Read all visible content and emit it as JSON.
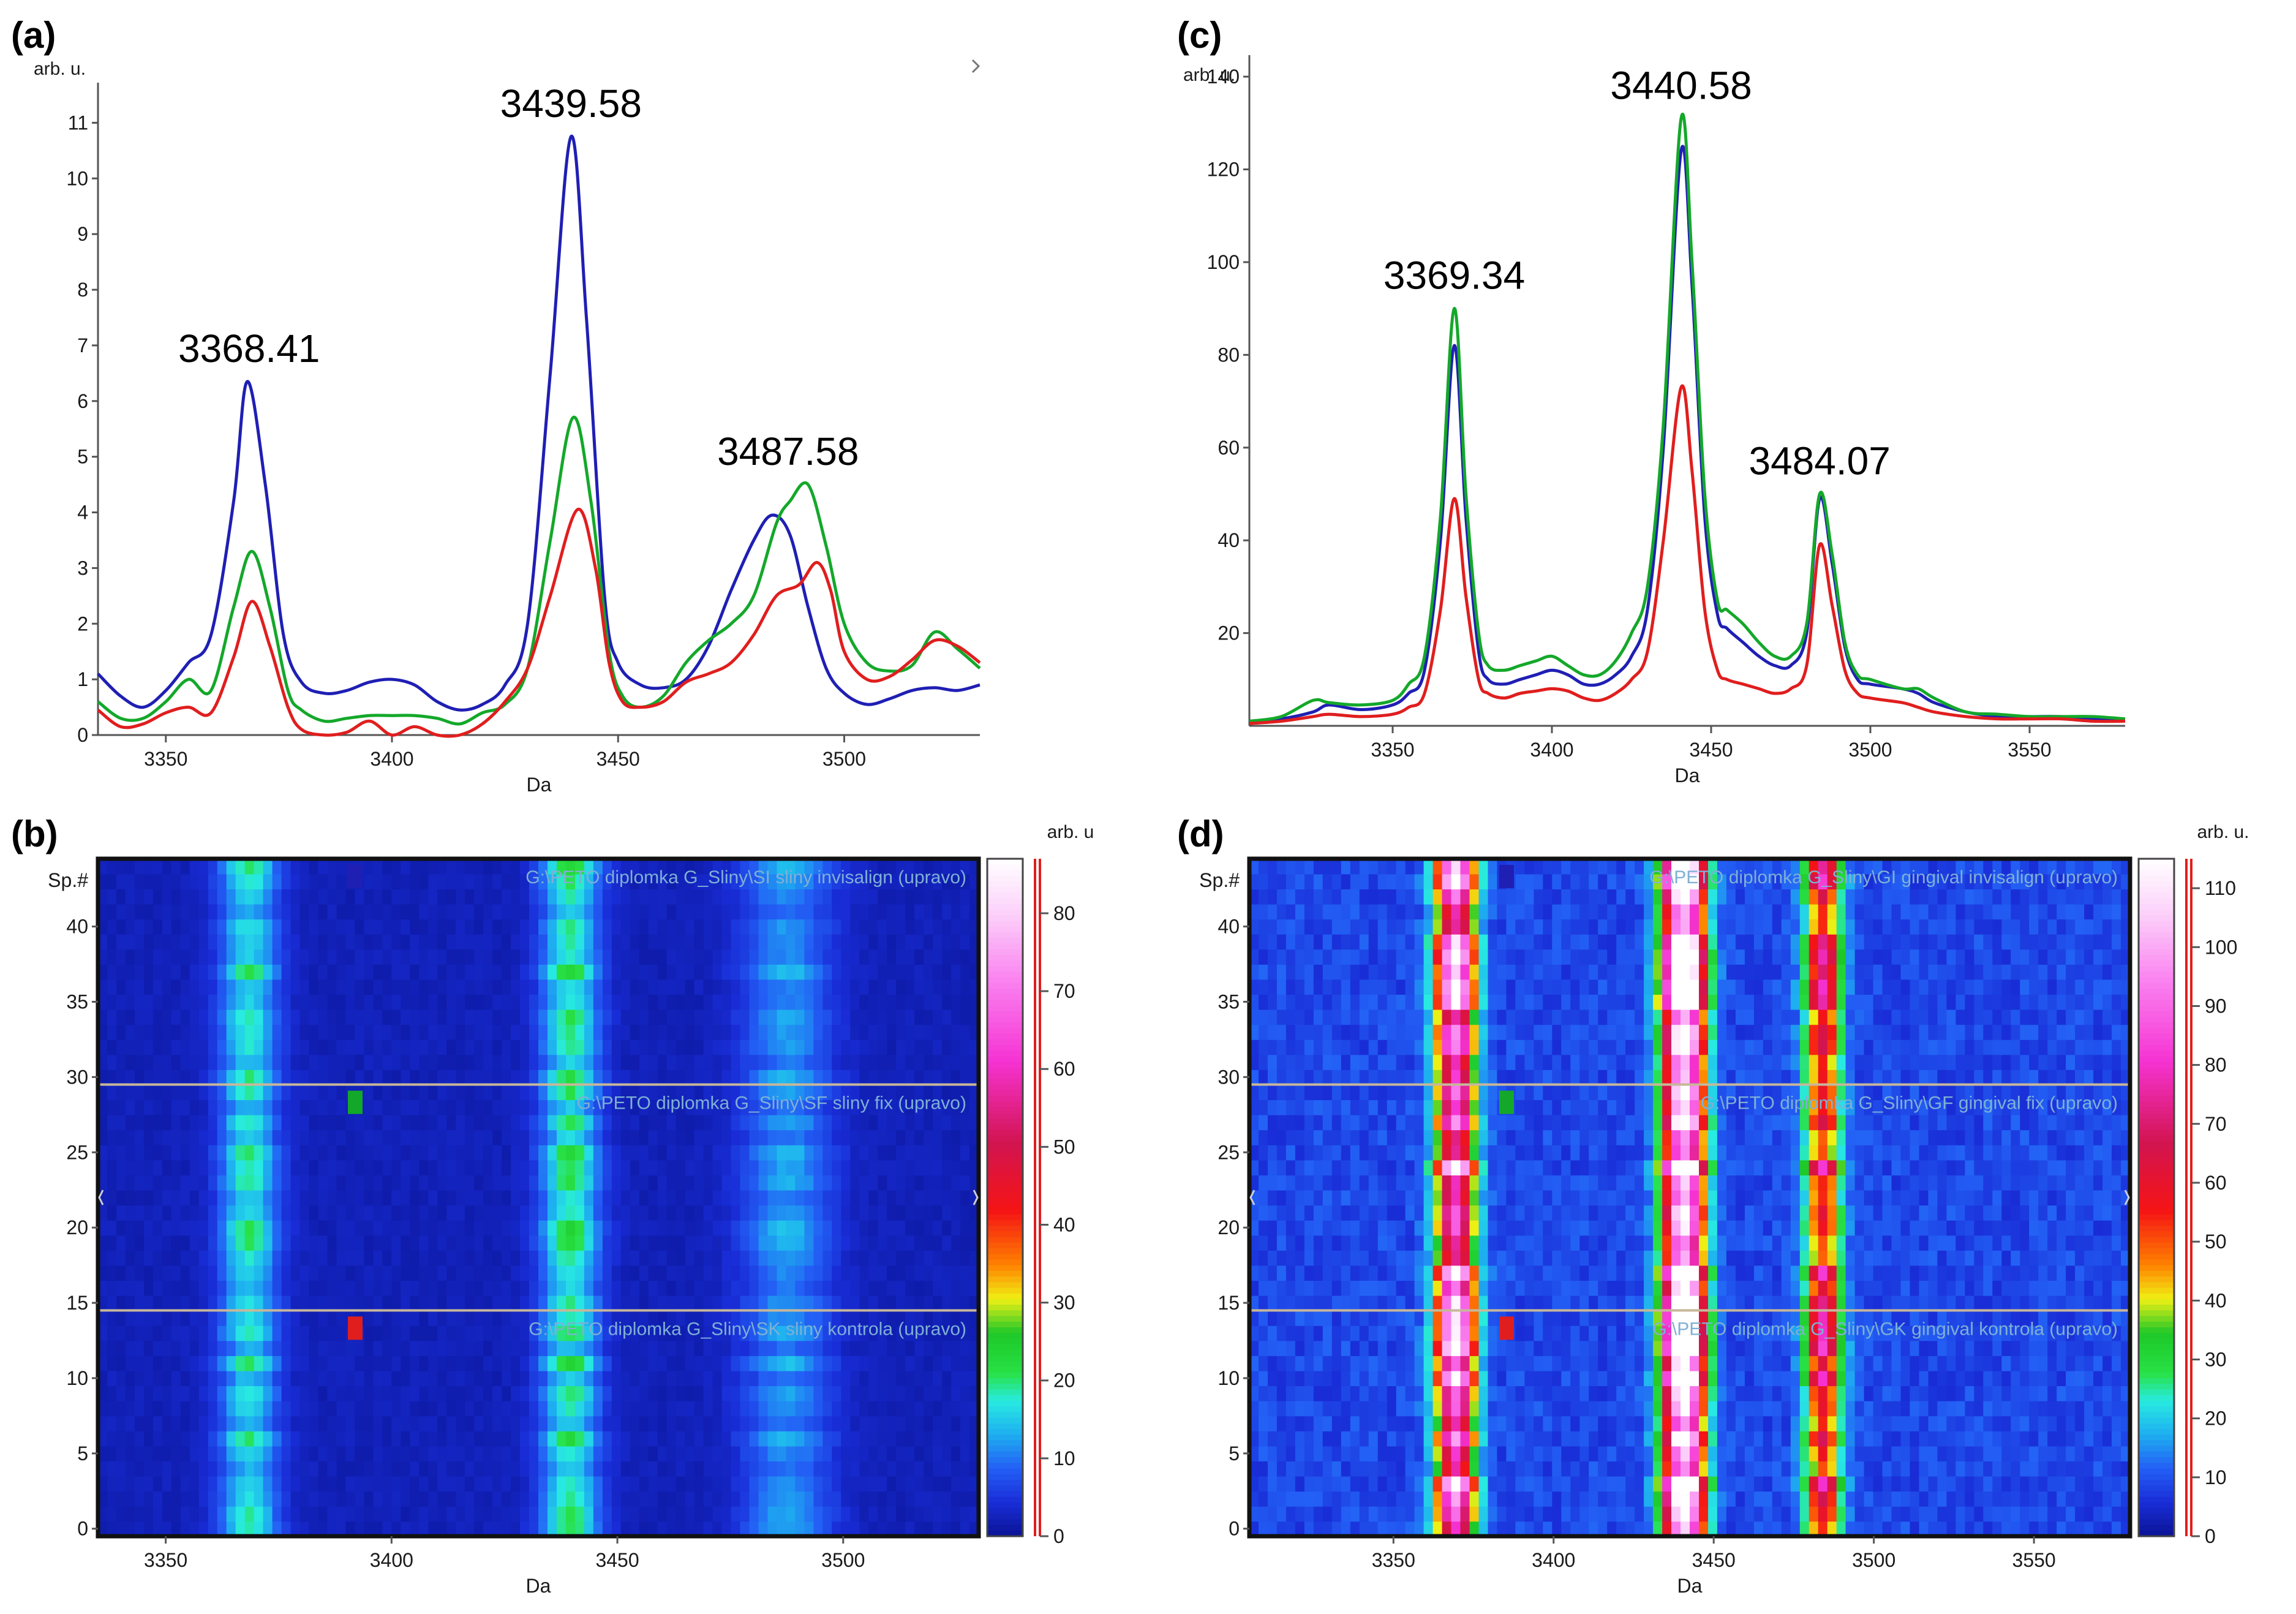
{
  "panels": {
    "a": {
      "label": "(a)"
    },
    "b": {
      "label": "(b)"
    },
    "c": {
      "label": "(c)"
    },
    "d": {
      "label": "(d)"
    }
  },
  "colors": {
    "blue": "#1f1fb4",
    "green": "#14a82a",
    "red": "#e01e1e"
  },
  "chart_data": [
    {
      "id": "a",
      "type": "line",
      "xlabel": "Da",
      "ylabel": "arb. u.",
      "xlim": [
        3335,
        3530
      ],
      "ylim": [
        0,
        11.5
      ],
      "xticks": [
        3350,
        3400,
        3450,
        3500
      ],
      "yticks": [
        0,
        1,
        2,
        3,
        4,
        5,
        6,
        7,
        8,
        9,
        10,
        11
      ],
      "annotations": [
        {
          "text": "3368.41",
          "x": 3368.41,
          "y": 6.35
        },
        {
          "text": "3439.58",
          "x": 3439.58,
          "y": 10.75
        },
        {
          "text": "3487.58",
          "x": 3487.58,
          "y": 4.5
        }
      ],
      "series": [
        {
          "name": "blue",
          "color": "#1f1fb4",
          "x": [
            3335,
            3340,
            3345,
            3350,
            3355,
            3360,
            3365,
            3368,
            3372,
            3376,
            3380,
            3385,
            3390,
            3395,
            3400,
            3405,
            3410,
            3415,
            3420,
            3425,
            3430,
            3435,
            3439.58,
            3443,
            3447,
            3450,
            3455,
            3460,
            3465,
            3470,
            3475,
            3480,
            3484,
            3488,
            3492,
            3496,
            3500,
            3505,
            3510,
            3515,
            3520,
            3525,
            3530
          ],
          "y": [
            1.1,
            0.7,
            0.5,
            0.8,
            1.3,
            1.8,
            4.2,
            6.35,
            4.5,
            1.8,
            0.95,
            0.75,
            0.8,
            0.95,
            1.0,
            0.9,
            0.6,
            0.45,
            0.55,
            0.9,
            2.0,
            6.5,
            10.75,
            7.5,
            2.5,
            1.3,
            0.9,
            0.85,
            1.0,
            1.6,
            2.6,
            3.5,
            3.95,
            3.6,
            2.3,
            1.2,
            0.75,
            0.55,
            0.65,
            0.8,
            0.85,
            0.8,
            0.9
          ]
        },
        {
          "name": "green",
          "color": "#14a82a",
          "x": [
            3335,
            3340,
            3345,
            3350,
            3355,
            3360,
            3365,
            3369,
            3373,
            3377,
            3380,
            3385,
            3390,
            3395,
            3400,
            3405,
            3410,
            3415,
            3420,
            3425,
            3430,
            3435,
            3440,
            3444,
            3448,
            3451,
            3455,
            3460,
            3465,
            3470,
            3475,
            3480,
            3485,
            3488,
            3492,
            3496,
            3500,
            3505,
            3510,
            3515,
            3520,
            3525,
            3530
          ],
          "y": [
            0.6,
            0.3,
            0.3,
            0.6,
            1.0,
            0.8,
            2.3,
            3.3,
            2.3,
            0.8,
            0.45,
            0.25,
            0.3,
            0.35,
            0.35,
            0.35,
            0.3,
            0.2,
            0.4,
            0.55,
            1.2,
            3.5,
            5.7,
            4.2,
            1.5,
            0.7,
            0.5,
            0.7,
            1.3,
            1.7,
            2.0,
            2.5,
            3.8,
            4.2,
            4.5,
            3.4,
            2.0,
            1.3,
            1.15,
            1.25,
            1.85,
            1.55,
            1.2
          ]
        },
        {
          "name": "red",
          "color": "#e01e1e",
          "x": [
            3335,
            3340,
            3345,
            3350,
            3355,
            3360,
            3365,
            3369,
            3373,
            3377,
            3380,
            3385,
            3390,
            3395,
            3400,
            3405,
            3410,
            3415,
            3420,
            3425,
            3430,
            3435,
            3441,
            3445,
            3448,
            3451,
            3455,
            3460,
            3465,
            3470,
            3475,
            3480,
            3485,
            3490,
            3494,
            3497,
            3500,
            3505,
            3510,
            3515,
            3520,
            3525,
            3530
          ],
          "y": [
            0.45,
            0.15,
            0.2,
            0.4,
            0.5,
            0.4,
            1.4,
            2.4,
            1.6,
            0.5,
            0.1,
            0.0,
            0.05,
            0.25,
            0.0,
            0.15,
            0.0,
            0.0,
            0.2,
            0.6,
            1.2,
            2.5,
            4.05,
            3.0,
            1.3,
            0.6,
            0.5,
            0.6,
            0.95,
            1.1,
            1.3,
            1.8,
            2.5,
            2.7,
            3.1,
            2.6,
            1.5,
            1.0,
            1.05,
            1.35,
            1.7,
            1.6,
            1.3
          ]
        }
      ]
    },
    {
      "id": "b",
      "type": "heatmap",
      "xlabel": "Da",
      "ylabel": "Sp.#",
      "colorbar_label": "arb. u",
      "xlim": [
        3335,
        3530
      ],
      "ylim": [
        -0.5,
        44.5
      ],
      "xticks": [
        3350,
        3400,
        3450,
        3500
      ],
      "yticks": [
        0,
        5,
        10,
        15,
        20,
        25,
        30,
        35,
        40
      ],
      "colorbar_range": [
        0,
        87
      ],
      "colorbar_ticks": [
        0,
        10,
        20,
        30,
        40,
        50,
        60,
        70,
        80
      ],
      "rows": 45,
      "group_separators": [
        14.5,
        29.5
      ],
      "peaks": [
        {
          "mz": 3368.41,
          "width": 4.5,
          "intensity": 14
        },
        {
          "mz": 3439.58,
          "width": 4.5,
          "intensity": 16
        },
        {
          "mz": 3487.58,
          "width": 7.0,
          "intensity": 9
        }
      ],
      "baseline": 2,
      "groups": [
        {
          "text": "G:\\PETO diplomka G_Sliny\\SK  sliny kontrola (upravo)",
          "color": "#e01e1e"
        },
        {
          "text": "G:\\PETO diplomka G_Sliny\\SF  sliny fix (upravo)",
          "color": "#14a82a"
        },
        {
          "text": "G:\\PETO diplomka G_Sliny\\SI  sliny invisalign (upravo)",
          "color": "#1f1fb4"
        }
      ]
    },
    {
      "id": "c",
      "type": "line",
      "xlabel": "Da",
      "ylabel": "arb. u.",
      "xlim": [
        3305,
        3580
      ],
      "ylim": [
        0,
        142
      ],
      "xticks": [
        3350,
        3400,
        3450,
        3500,
        3550
      ],
      "yticks": [
        20,
        40,
        60,
        80,
        100,
        120,
        140
      ],
      "annotations": [
        {
          "text": "3369.34",
          "x": 3369.34,
          "y": 90
        },
        {
          "text": "3440.58",
          "x": 3440.58,
          "y": 131
        },
        {
          "text": "3484.07",
          "x": 3484.07,
          "y": 50
        }
      ],
      "series": [
        {
          "name": "blue",
          "color": "#1f1fb4",
          "x": [
            3305,
            3315,
            3325,
            3330,
            3340,
            3350,
            3355,
            3360,
            3365,
            3369.34,
            3373,
            3377,
            3380,
            3385,
            3390,
            3395,
            3400,
            3405,
            3410,
            3415,
            3420,
            3425,
            3430,
            3435,
            3440.58,
            3444,
            3448,
            3452,
            3455,
            3460,
            3465,
            3470,
            3475,
            3480,
            3484.07,
            3488,
            3492,
            3496,
            3500,
            3510,
            3515,
            3520,
            3530,
            3540,
            3550,
            3560,
            3570,
            3580
          ],
          "y": [
            1,
            1.5,
            3,
            4.5,
            3.5,
            4.5,
            7,
            12,
            40,
            82,
            45,
            16,
            10,
            9,
            10,
            11,
            12,
            11,
            9,
            9,
            11,
            15,
            25,
            60,
            124,
            95,
            45,
            24,
            21,
            18,
            15,
            13,
            13,
            20,
            49,
            35,
            17,
            10,
            9,
            8,
            7,
            5,
            3,
            2,
            2,
            2,
            1.5,
            1.5
          ]
        },
        {
          "name": "green",
          "color": "#14a82a",
          "x": [
            3305,
            3315,
            3325,
            3330,
            3340,
            3350,
            3355,
            3360,
            3365,
            3369.34,
            3373,
            3377,
            3380,
            3385,
            3390,
            3395,
            3400,
            3405,
            3410,
            3415,
            3420,
            3425,
            3430,
            3435,
            3440.58,
            3444,
            3448,
            3452,
            3455,
            3460,
            3465,
            3470,
            3475,
            3480,
            3484.07,
            3488,
            3492,
            3496,
            3500,
            3510,
            3515,
            3520,
            3530,
            3540,
            3550,
            3560,
            3570,
            3580
          ],
          "y": [
            1,
            2,
            5.5,
            5,
            4.5,
            5.5,
            9,
            15,
            45,
            90,
            50,
            20,
            13,
            12,
            13,
            14,
            15,
            13,
            11,
            11,
            14,
            20,
            30,
            65,
            131,
            100,
            50,
            27,
            25,
            22,
            18,
            15,
            15,
            22,
            50,
            37,
            18,
            11,
            10,
            8,
            8,
            6,
            3,
            2.5,
            2,
            2,
            2,
            1.5
          ]
        },
        {
          "name": "red",
          "color": "#e01e1e",
          "x": [
            3305,
            3315,
            3325,
            3330,
            3340,
            3350,
            3355,
            3360,
            3365,
            3369.34,
            3373,
            3377,
            3380,
            3385,
            3390,
            3395,
            3400,
            3405,
            3410,
            3415,
            3420,
            3425,
            3430,
            3435,
            3440.58,
            3444,
            3448,
            3452,
            3455,
            3460,
            3465,
            3470,
            3475,
            3480,
            3484.07,
            3488,
            3492,
            3496,
            3500,
            3510,
            3515,
            3520,
            3530,
            3540,
            3550,
            3560,
            3570,
            3580
          ],
          "y": [
            0.5,
            1,
            2,
            2.5,
            2,
            2.5,
            4,
            7,
            25,
            49,
            28,
            10,
            7,
            6,
            7,
            7.5,
            8,
            7.5,
            6,
            5.5,
            7,
            10,
            16,
            40,
            73,
            55,
            25,
            12,
            10,
            9,
            8,
            7,
            8,
            13,
            39,
            26,
            12,
            7,
            6,
            5,
            4,
            3,
            2,
            1.5,
            1.5,
            1.5,
            1,
            1
          ]
        }
      ]
    },
    {
      "id": "d",
      "type": "heatmap",
      "xlabel": "Da",
      "ylabel": "Sp.#",
      "colorbar_label": "arb. u.",
      "xlim": [
        3305,
        3580
      ],
      "ylim": [
        -0.5,
        44.5
      ],
      "xticks": [
        3350,
        3400,
        3450,
        3500,
        3550
      ],
      "yticks": [
        0,
        5,
        10,
        15,
        20,
        25,
        30,
        35,
        40
      ],
      "colorbar_range": [
        0,
        115
      ],
      "colorbar_ticks": [
        0,
        10,
        20,
        30,
        40,
        50,
        60,
        70,
        80,
        90,
        100,
        110
      ],
      "rows": 45,
      "group_separators": [
        14.5,
        29.5
      ],
      "peaks": [
        {
          "mz": 3369.34,
          "width": 4.2,
          "intensity": 85
        },
        {
          "mz": 3440.58,
          "width": 4.5,
          "intensity": 115
        },
        {
          "mz": 3484.07,
          "width": 3.8,
          "intensity": 55
        }
      ],
      "baseline": 8,
      "groups": [
        {
          "text": "G:\\PETO diplomka G_Sliny\\GK  gingival kontrola (upravo)",
          "color": "#e01e1e"
        },
        {
          "text": "G:\\PETO diplomka G_Sliny\\GF  gingival fix (upravo)",
          "color": "#14a82a"
        },
        {
          "text": "G:\\PETO diplomka G_Sliny\\GI  gingival invisalign (upravo)",
          "color": "#1f1fb4"
        }
      ]
    }
  ]
}
